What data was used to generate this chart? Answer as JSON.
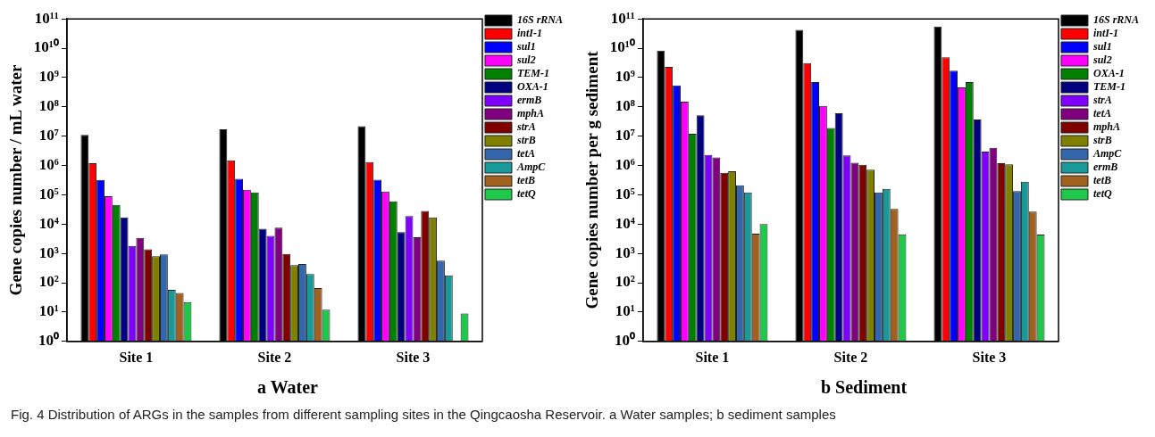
{
  "chart_data": [
    {
      "type": "bar",
      "title": "a Water",
      "ylabel": "Gene copies number / mL water",
      "categories": [
        "Site 1",
        "Site 2",
        "Site 3"
      ],
      "log": true,
      "grid": false,
      "legend": "right",
      "ylim": [
        1,
        100000000000
      ],
      "yticks": [
        {
          "value": 1,
          "label": "10⁰"
        },
        {
          "value": 10,
          "label": "10¹"
        },
        {
          "value": 100,
          "label": "10²"
        },
        {
          "value": 1000,
          "label": "10³"
        },
        {
          "value": 10000,
          "label": "10⁴"
        },
        {
          "value": 100000,
          "label": "10⁵"
        },
        {
          "value": 1000000,
          "label": "10⁶"
        },
        {
          "value": 10000000,
          "label": "10⁷"
        },
        {
          "value": 100000000,
          "label": "10⁸"
        },
        {
          "value": 1000000000,
          "label": "10⁹"
        },
        {
          "value": 10000000000,
          "label": "10¹⁰"
        },
        {
          "value": 100000000000,
          "label": "10¹¹"
        }
      ],
      "annotations": [
        "Fig. 4  Distribution of ARGs in the samples from different sampling sites in the Qingcaosha Reservoir. a Water samples; b sediment samples"
      ],
      "series": [
        {
          "name": "16S rRNA",
          "color": "#000000",
          "values": [
            11000000,
            17000000,
            22000000
          ]
        },
        {
          "name": "intI-1",
          "color": "#ff0000",
          "values": [
            1200000,
            1500000,
            1300000
          ]
        },
        {
          "name": "sul1",
          "color": "#0000ff",
          "values": [
            320000,
            350000,
            330000
          ]
        },
        {
          "name": "sul2",
          "color": "#ff00ff",
          "values": [
            90000,
            150000,
            130000
          ]
        },
        {
          "name": "TEM-1",
          "color": "#008000",
          "values": [
            45000,
            120000,
            60000
          ]
        },
        {
          "name": "OXA-1",
          "color": "#000080",
          "values": [
            17000,
            7000,
            5300
          ]
        },
        {
          "name": "ermB",
          "color": "#8000ff",
          "values": [
            1800,
            4000,
            19000
          ]
        },
        {
          "name": "mphA",
          "color": "#800080",
          "values": [
            3400,
            7600,
            3600
          ]
        },
        {
          "name": "strA",
          "color": "#800000",
          "values": [
            1400,
            960,
            28000
          ]
        },
        {
          "name": "strB",
          "color": "#808000",
          "values": [
            800,
            400,
            17000
          ]
        },
        {
          "name": "tetA",
          "color": "#3366aa",
          "values": [
            930,
            440,
            570
          ]
        },
        {
          "name": "AmpC",
          "color": "#1a9999",
          "values": [
            57,
            200,
            180
          ]
        },
        {
          "name": "tetB",
          "color": "#a0621e",
          "values": [
            45,
            66,
            null
          ]
        },
        {
          "name": "tetQ",
          "color": "#1ec84a",
          "values": [
            22,
            12,
            9
          ]
        }
      ]
    },
    {
      "type": "bar",
      "title": "b Sediment",
      "ylabel": "Gene copies number per g sediment",
      "categories": [
        "Site 1",
        "Site 2",
        "Site 3"
      ],
      "log": true,
      "grid": false,
      "legend": "right",
      "ylim": [
        1,
        100000000000
      ],
      "yticks": [
        {
          "value": 1,
          "label": "10⁰"
        },
        {
          "value": 10,
          "label": "10¹"
        },
        {
          "value": 100,
          "label": "10²"
        },
        {
          "value": 1000,
          "label": "10³"
        },
        {
          "value": 10000,
          "label": "10⁴"
        },
        {
          "value": 100000,
          "label": "10⁵"
        },
        {
          "value": 1000000,
          "label": "10⁶"
        },
        {
          "value": 10000000,
          "label": "10⁷"
        },
        {
          "value": 100000000,
          "label": "10⁸"
        },
        {
          "value": 1000000000,
          "label": "10⁹"
        },
        {
          "value": 10000000000,
          "label": "10¹⁰"
        },
        {
          "value": 100000000000,
          "label": "10¹¹"
        }
      ],
      "series": [
        {
          "name": "16S rRNA",
          "color": "#000000",
          "values": [
            8300000000,
            42000000000,
            55000000000
          ]
        },
        {
          "name": "intI-1",
          "color": "#ff0000",
          "values": [
            2300000000,
            3100000000,
            4900000000
          ]
        },
        {
          "name": "sul1",
          "color": "#0000ff",
          "values": [
            540000000,
            700000000,
            1700000000
          ]
        },
        {
          "name": "sul2",
          "color": "#ff00ff",
          "values": [
            150000000,
            107000000,
            460000000
          ]
        },
        {
          "name": "OXA-1",
          "color": "#008000",
          "values": [
            12000000,
            19000000,
            700000000
          ]
        },
        {
          "name": "TEM-1",
          "color": "#000080",
          "values": [
            52000000,
            60000000,
            37000000
          ]
        },
        {
          "name": "strA",
          "color": "#8000ff",
          "values": [
            2300000,
            2200000,
            3000000
          ]
        },
        {
          "name": "tetA",
          "color": "#800080",
          "values": [
            1900000,
            1250000,
            4000000
          ]
        },
        {
          "name": "mphA",
          "color": "#800000",
          "values": [
            560000,
            1050000,
            1200000
          ]
        },
        {
          "name": "strB",
          "color": "#808000",
          "values": [
            640000,
            720000,
            1100000
          ]
        },
        {
          "name": "AmpC",
          "color": "#3366aa",
          "values": [
            210000,
            120000,
            135000
          ]
        },
        {
          "name": "ermB",
          "color": "#1a9999",
          "values": [
            120000,
            160000,
            280000
          ]
        },
        {
          "name": "tetB",
          "color": "#a0621e",
          "values": [
            4700,
            33000,
            27000
          ]
        },
        {
          "name": "tetQ",
          "color": "#1ec84a",
          "values": [
            10000,
            4500,
            4400
          ]
        }
      ]
    }
  ]
}
